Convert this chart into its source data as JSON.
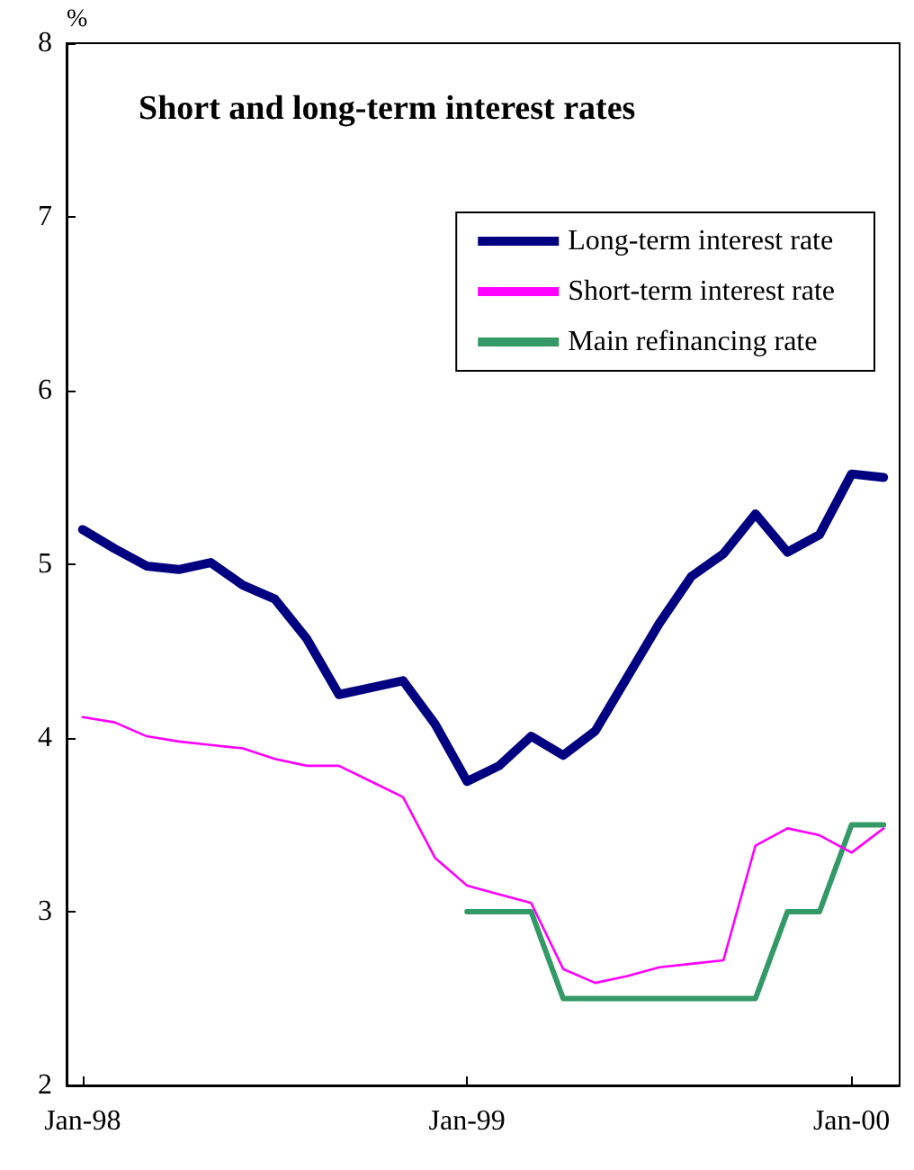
{
  "chart_data": {
    "type": "line",
    "title": "Short and long-term interest rates",
    "ylabel": "%",
    "categories": [
      "Jan-98",
      null,
      null,
      null,
      null,
      null,
      null,
      null,
      null,
      null,
      null,
      null,
      "Jan-99",
      null,
      null,
      null,
      null,
      null,
      null,
      null,
      null,
      null,
      null,
      null,
      "Jan-00",
      null
    ],
    "series": [
      {
        "name": "Long-term interest rate",
        "color": "#000080",
        "values": [
          5.2,
          5.09,
          4.99,
          4.97,
          5.01,
          4.88,
          4.8,
          4.57,
          4.25,
          4.29,
          4.33,
          4.08,
          3.75,
          3.84,
          4.01,
          3.9,
          4.04,
          4.35,
          4.66,
          4.93,
          5.06,
          5.29,
          5.07,
          5.17,
          5.52,
          5.5
        ]
      },
      {
        "name": "Short-term interest rate",
        "color": "#ff00ff",
        "values": [
          4.12,
          4.09,
          4.01,
          3.98,
          3.96,
          3.94,
          3.88,
          3.84,
          3.84,
          3.75,
          3.66,
          3.31,
          3.15,
          3.1,
          3.05,
          2.67,
          2.59,
          2.63,
          2.68,
          2.7,
          2.72,
          3.38,
          3.48,
          3.44,
          3.34,
          3.48
        ]
      },
      {
        "name": "Main refinancing rate",
        "color": "#339966",
        "values": [
          null,
          null,
          null,
          null,
          null,
          null,
          null,
          null,
          null,
          null,
          null,
          null,
          3.0,
          3.0,
          3.0,
          2.5,
          2.5,
          2.5,
          2.5,
          2.5,
          2.5,
          2.5,
          3.0,
          3.0,
          3.5,
          3.5
        ]
      }
    ],
    "ylim": [
      2,
      8
    ],
    "yticks": [
      2,
      3,
      4,
      5,
      6,
      7,
      8
    ],
    "grid": false,
    "legend": "top right",
    "marker": "none",
    "line_style": "solid"
  }
}
